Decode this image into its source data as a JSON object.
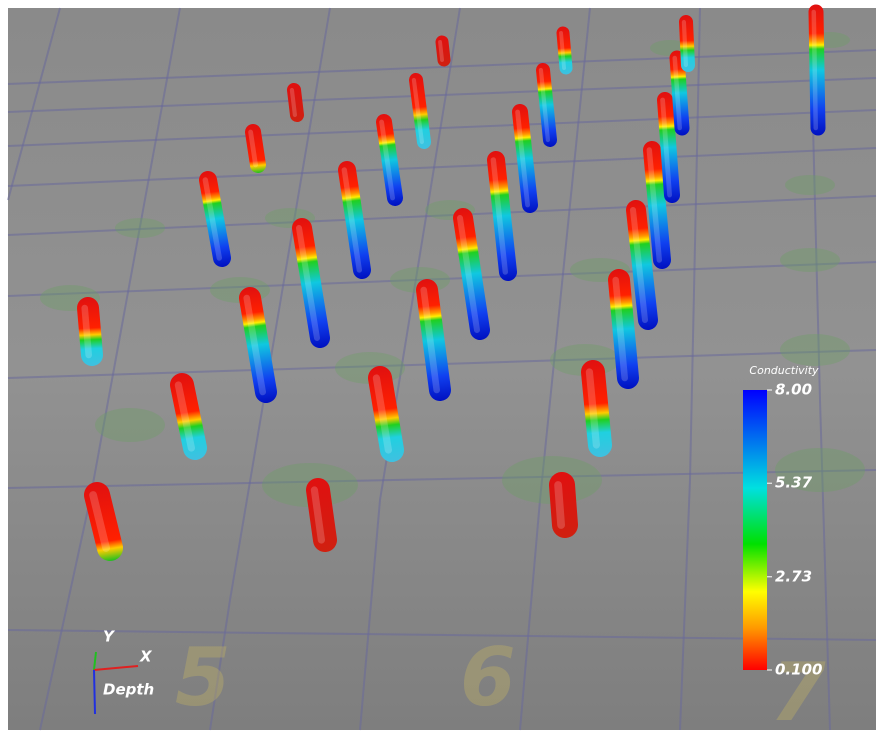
{
  "colorbar": {
    "title": "Conductivity",
    "range": [
      0.1,
      8
    ],
    "ticks": [
      {
        "value": 8,
        "label": "8.00"
      },
      {
        "value": 5.37,
        "label": "5.37"
      },
      {
        "value": 2.73,
        "label": "2.73"
      },
      {
        "value": 0.1,
        "label": "0.100"
      }
    ]
  },
  "axes_triad": {
    "y": "Y",
    "x": "X",
    "depth": "Depth"
  },
  "grid_labels": [
    "5",
    "6",
    "7"
  ]
}
